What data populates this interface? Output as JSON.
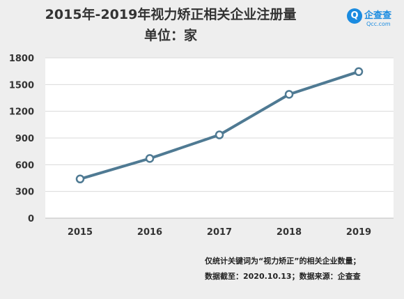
{
  "logo": {
    "mark": "Q",
    "name": "企查查",
    "sub": "Qcc.com"
  },
  "chart_data": {
    "type": "line",
    "title": "2015年-2019年视力矫正相关企业注册量",
    "subtitle": "单位：家",
    "categories": [
      "2015",
      "2016",
      "2017",
      "2018",
      "2019"
    ],
    "series": [
      {
        "values": [
          440,
          670,
          935,
          1390,
          1645
        ]
      }
    ],
    "ylim": [
      0,
      1800
    ],
    "yticks": [
      0,
      300,
      600,
      900,
      1200,
      1500,
      1800
    ],
    "grid": true,
    "line_color": "#4f7a93",
    "marker_fill": "#ffffff"
  },
  "notes": [
    "仅统计关键词为“视力矫正”的相关企业数量；",
    "数据截至：2020.10.13；数据来源：企查查"
  ]
}
